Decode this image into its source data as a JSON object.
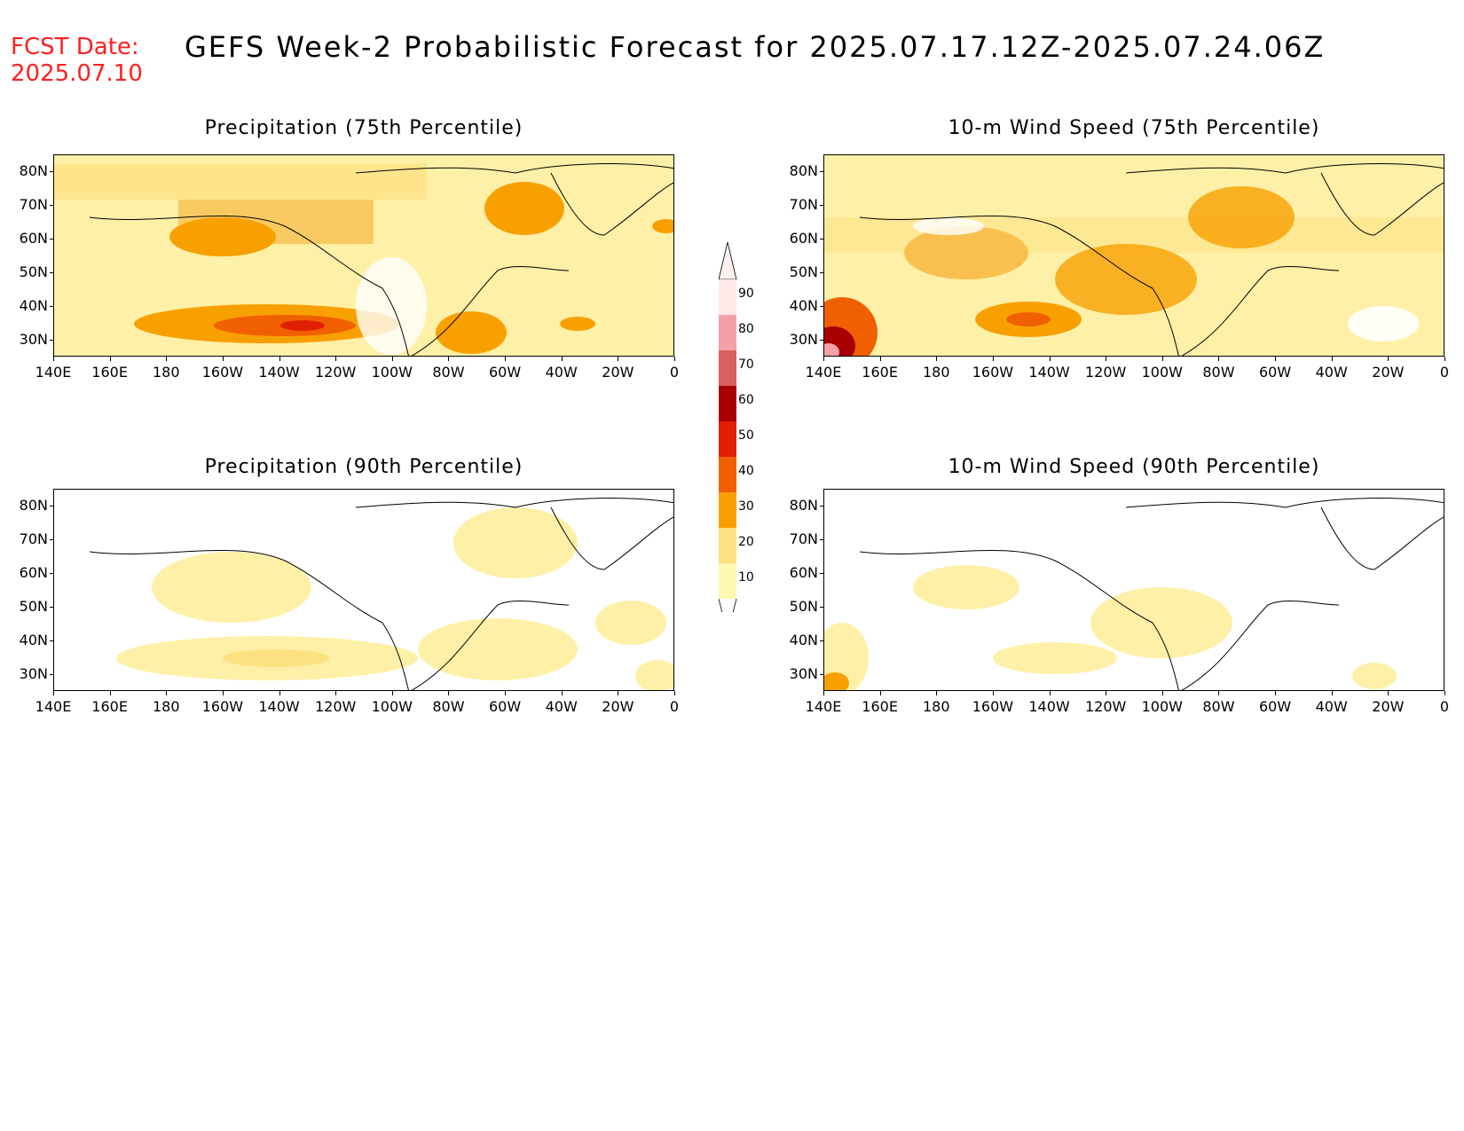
{
  "header": {
    "fcst_label": "FCST Date:",
    "fcst_date": "2025.07.10",
    "title": "GEFS Week-2 Probabilistic Forecast for 2025.07.17.12Z-2025.07.24.06Z"
  },
  "panels": [
    {
      "title": "Precipitation (75th Percentile)"
    },
    {
      "title": "10-m Wind Speed (75th Percentile)"
    },
    {
      "title": "Precipitation (90th Percentile)"
    },
    {
      "title": "10-m Wind Speed (90th Percentile)"
    }
  ],
  "axes": {
    "lat_labels": [
      "80N",
      "70N",
      "60N",
      "50N",
      "40N",
      "30N"
    ],
    "lon_labels": [
      "140E",
      "160E",
      "180",
      "160W",
      "140W",
      "120W",
      "100W",
      "80W",
      "60W",
      "40W",
      "20W",
      "0"
    ]
  },
  "colorbar": {
    "levels": [
      "90",
      "80",
      "70",
      "60",
      "50",
      "40",
      "30",
      "20",
      "10"
    ],
    "colors": [
      "#ffe8e8",
      "#f4a0a8",
      "#d86060",
      "#a80000",
      "#e02000",
      "#f06000",
      "#f8a000",
      "#fde080",
      "#fff8b0"
    ]
  }
}
